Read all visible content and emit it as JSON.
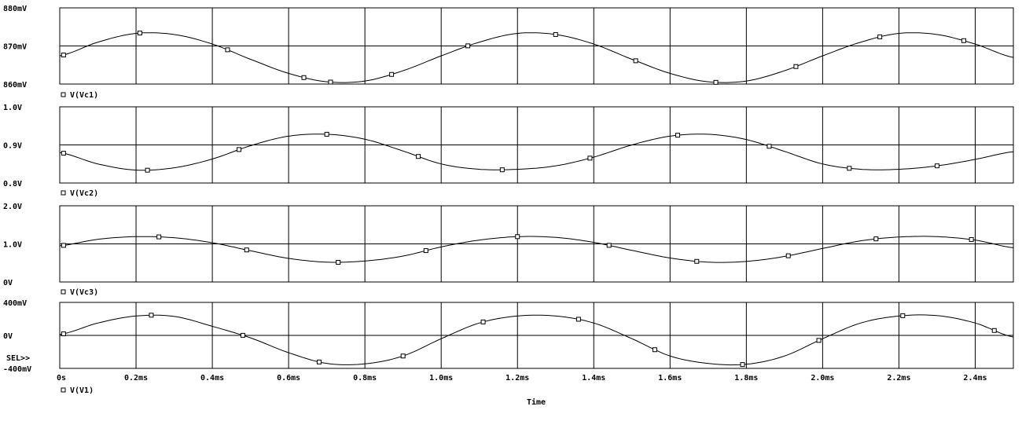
{
  "window": {
    "sel_marker": "SEL>>",
    "time_label": "Time"
  },
  "colors": {
    "background": "#ffffff",
    "trace": "#000000",
    "grid": "#000000"
  },
  "chart_data": [
    {
      "type": "line",
      "legend": "V(Vc1)",
      "x": [
        0.0,
        0.1,
        0.2,
        0.3,
        0.4,
        0.5,
        0.6,
        0.7,
        0.8,
        0.9,
        1.0,
        1.1,
        1.2,
        1.3,
        1.4,
        1.5,
        1.6,
        1.7,
        1.8,
        1.9,
        2.0,
        2.1,
        2.2,
        2.3,
        2.4,
        2.5
      ],
      "values": [
        867.4,
        871.0,
        873.3,
        873.0,
        870.5,
        866.5,
        862.8,
        860.6,
        860.8,
        863.5,
        867.4,
        871.0,
        873.3,
        873.0,
        870.5,
        866.5,
        862.8,
        860.6,
        860.8,
        863.5,
        867.4,
        871.0,
        873.3,
        873.0,
        870.5,
        867.0
      ],
      "markers_x": [
        0.01,
        0.21,
        0.44,
        0.64,
        0.71,
        0.87,
        1.07,
        1.3,
        1.51,
        1.72,
        1.93,
        2.15,
        2.37
      ],
      "ylim": [
        860,
        880
      ],
      "yticks": [
        {
          "v": 880,
          "label": "880mV"
        },
        {
          "v": 870,
          "label": "870mV"
        },
        {
          "v": 860,
          "label": "860mV"
        }
      ]
    },
    {
      "type": "line",
      "legend": "V(Vc2)",
      "x": [
        0.0,
        0.1,
        0.2,
        0.3,
        0.4,
        0.5,
        0.6,
        0.7,
        0.8,
        0.9,
        1.0,
        1.1,
        1.2,
        1.3,
        1.4,
        1.5,
        1.6,
        1.7,
        1.8,
        1.9,
        2.0,
        2.1,
        2.2,
        2.3,
        2.4,
        2.5
      ],
      "values": [
        0.88,
        0.85,
        0.834,
        0.84,
        0.863,
        0.898,
        0.923,
        0.928,
        0.915,
        0.884,
        0.85,
        0.836,
        0.836,
        0.845,
        0.868,
        0.9,
        0.923,
        0.928,
        0.914,
        0.883,
        0.85,
        0.836,
        0.836,
        0.845,
        0.862,
        0.882
      ],
      "markers_x": [
        0.01,
        0.23,
        0.47,
        0.7,
        0.94,
        1.16,
        1.39,
        1.62,
        1.86,
        2.07,
        2.3
      ],
      "ylim": [
        0.8,
        1.0
      ],
      "yticks": [
        {
          "v": 1.0,
          "label": "1.0V"
        },
        {
          "v": 0.9,
          "label": "0.9V"
        },
        {
          "v": 0.8,
          "label": "0.8V"
        }
      ]
    },
    {
      "type": "line",
      "legend": "V(Vc3)",
      "x": [
        0.0,
        0.1,
        0.2,
        0.3,
        0.4,
        0.5,
        0.6,
        0.7,
        0.8,
        0.9,
        1.0,
        1.1,
        1.2,
        1.3,
        1.4,
        1.5,
        1.6,
        1.7,
        1.8,
        1.9,
        2.0,
        2.1,
        2.2,
        2.3,
        2.4,
        2.5
      ],
      "values": [
        0.95,
        1.12,
        1.19,
        1.16,
        1.03,
        0.82,
        0.62,
        0.52,
        0.55,
        0.68,
        0.92,
        1.1,
        1.19,
        1.17,
        1.04,
        0.83,
        0.63,
        0.52,
        0.54,
        0.67,
        0.88,
        1.08,
        1.18,
        1.19,
        1.1,
        0.9
      ],
      "markers_x": [
        0.01,
        0.26,
        0.49,
        0.73,
        0.96,
        1.2,
        1.44,
        1.67,
        1.91,
        2.14,
        2.39
      ],
      "ylim": [
        0,
        2.0
      ],
      "yticks": [
        {
          "v": 2.0,
          "label": "2.0V"
        },
        {
          "v": 1.0,
          "label": "1.0V"
        },
        {
          "v": 0,
          "label": "0V"
        }
      ]
    },
    {
      "type": "line",
      "legend": "V(V1)",
      "x": [
        0.0,
        0.1,
        0.2,
        0.3,
        0.4,
        0.5,
        0.6,
        0.7,
        0.8,
        0.9,
        1.0,
        1.1,
        1.2,
        1.3,
        1.4,
        1.5,
        1.6,
        1.7,
        1.8,
        1.9,
        2.0,
        2.1,
        2.2,
        2.3,
        2.4,
        2.5
      ],
      "values": [
        10,
        150,
        235,
        230,
        110,
        -30,
        -210,
        -340,
        -345,
        -250,
        -40,
        150,
        235,
        235,
        150,
        -40,
        -250,
        -340,
        -350,
        -250,
        -40,
        150,
        235,
        240,
        150,
        -20
      ],
      "markers_x": [
        0.01,
        0.24,
        0.48,
        0.68,
        0.9,
        1.11,
        1.36,
        1.56,
        1.79,
        1.99,
        2.21,
        2.45
      ],
      "ylim": [
        -400,
        400
      ],
      "yticks": [
        {
          "v": 400,
          "label": "400mV"
        },
        {
          "v": 0,
          "label": "0V"
        },
        {
          "v": -400,
          "label": "-400mV"
        }
      ],
      "xlabel": "Time",
      "xlim": [
        0,
        2.5
      ],
      "xticks": [
        {
          "v": 0,
          "label": "0s"
        },
        {
          "v": 0.2,
          "label": "0.2ms"
        },
        {
          "v": 0.4,
          "label": "0.4ms"
        },
        {
          "v": 0.6,
          "label": "0.6ms"
        },
        {
          "v": 0.8,
          "label": "0.8ms"
        },
        {
          "v": 1.0,
          "label": "1.0ms"
        },
        {
          "v": 1.2,
          "label": "1.2ms"
        },
        {
          "v": 1.4,
          "label": "1.4ms"
        },
        {
          "v": 1.6,
          "label": "1.6ms"
        },
        {
          "v": 1.8,
          "label": "1.8ms"
        },
        {
          "v": 2.0,
          "label": "2.0ms"
        },
        {
          "v": 2.2,
          "label": "2.2ms"
        },
        {
          "v": 2.4,
          "label": "2.4ms"
        }
      ]
    }
  ]
}
